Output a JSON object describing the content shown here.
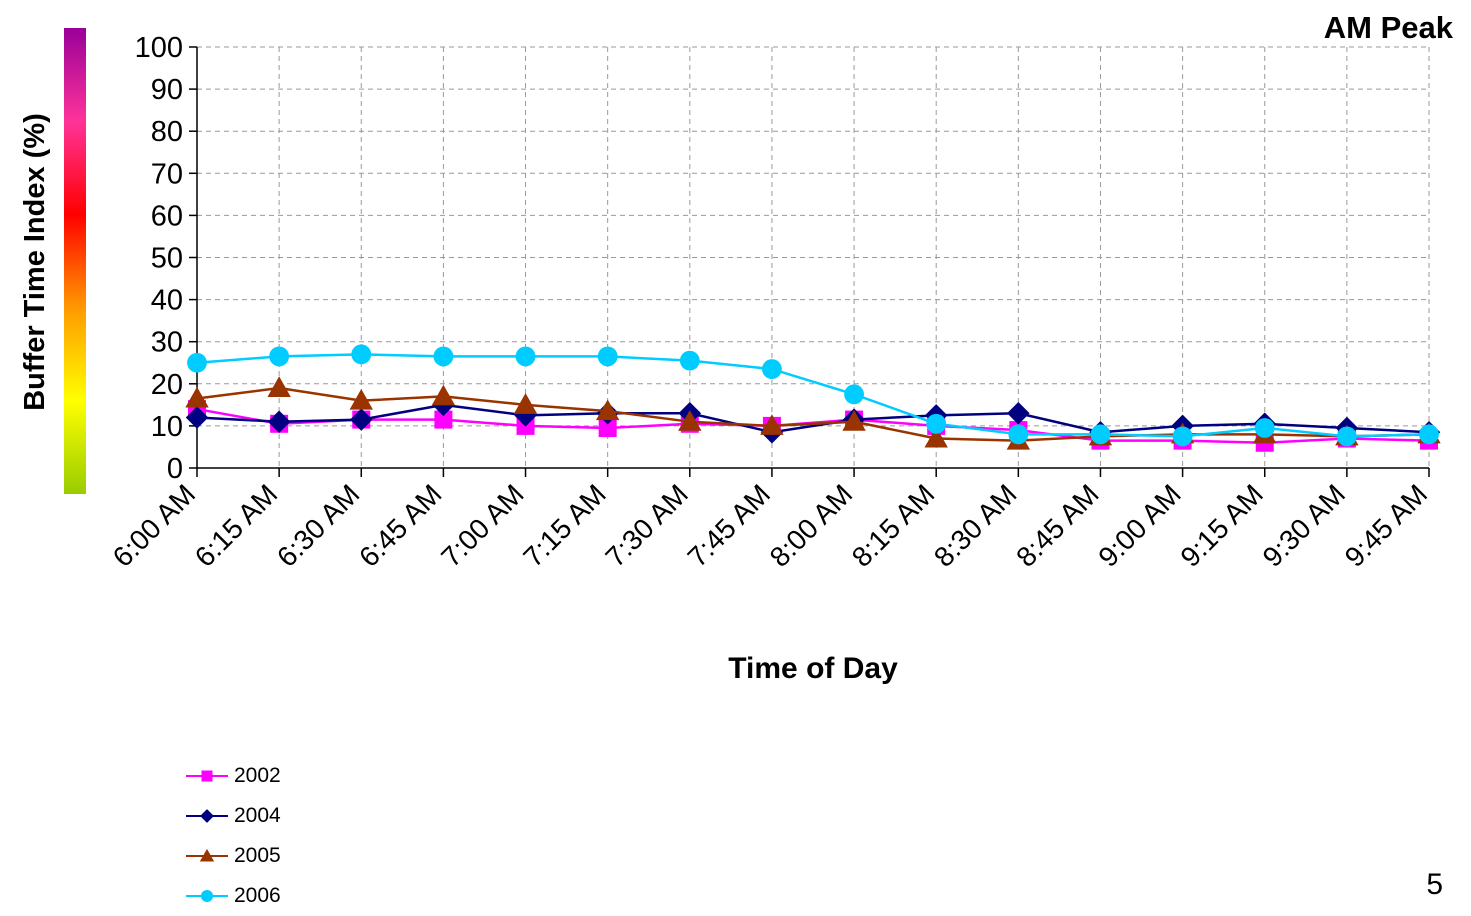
{
  "page": {
    "peak_label": "AM Peak",
    "page_number": "5"
  },
  "colors": {
    "index_scale_gradient": [
      "#99cc00",
      "#ffff00",
      "#ff9900",
      "#ff0000",
      "#ff3399",
      "#990099"
    ],
    "grid": "#999999"
  },
  "chart_data": {
    "type": "line",
    "title": "AM Peak",
    "xlabel": "Time of Day",
    "ylabel": "Buffer Time Index (%)",
    "ylim": [
      0,
      100
    ],
    "yticks": [
      0,
      10,
      20,
      30,
      40,
      50,
      60,
      70,
      80,
      90,
      100
    ],
    "grid": true,
    "legend_position": "bottom-left",
    "categories": [
      "6:00 AM",
      "6:15 AM",
      "6:30 AM",
      "6:45 AM",
      "7:00 AM",
      "7:15 AM",
      "7:30 AM",
      "7:45 AM",
      "8:00 AM",
      "8:15 AM",
      "8:30 AM",
      "8:45 AM",
      "9:00 AM",
      "9:15 AM",
      "9:30 AM",
      "9:45 AM"
    ],
    "series": [
      {
        "name": "2002",
        "color": "#ff00ff",
        "marker": "square",
        "values": [
          14,
          10.5,
          11.5,
          11.5,
          10,
          9.5,
          10.5,
          10,
          11.5,
          10,
          9,
          6.5,
          6.5,
          6,
          7,
          6.5
        ]
      },
      {
        "name": "2004",
        "color": "#000080",
        "marker": "diamond",
        "values": [
          12,
          11,
          11.5,
          15,
          12.5,
          13,
          13,
          8.5,
          11.5,
          12.5,
          13,
          8.5,
          10,
          10.5,
          9.5,
          8.5
        ]
      },
      {
        "name": "2005",
        "color": "#993300",
        "marker": "triangle",
        "values": [
          16.5,
          19,
          16,
          17,
          15,
          13.5,
          11,
          10,
          11,
          7,
          6.5,
          7.5,
          8,
          8,
          7.5,
          8
        ]
      },
      {
        "name": "2006",
        "color": "#00ccff",
        "marker": "circle",
        "values": [
          25,
          26.5,
          27,
          26.5,
          26.5,
          26.5,
          25.5,
          23.5,
          17.5,
          10.5,
          8,
          8,
          7.5,
          9.5,
          7.5,
          8
        ]
      }
    ]
  }
}
